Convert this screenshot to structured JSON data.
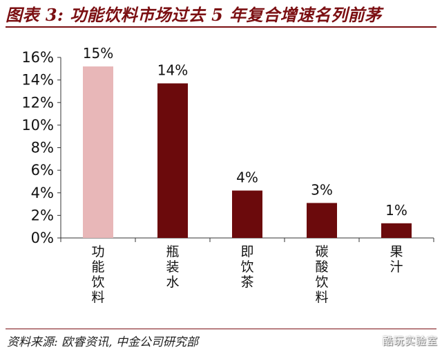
{
  "header": {
    "title": "图表 3: 功能饮料市场过去 5 年复合增速名列前茅"
  },
  "footer": {
    "source": "资料来源: 欧睿资讯, 中金公司研究部",
    "watermark": "酷玩实验室"
  },
  "colors": {
    "accent": "#7b0f12",
    "bar_default": "#6b0a0c",
    "bar_highlight": "#e8b7b8"
  },
  "chart_data": {
    "type": "bar",
    "title": "",
    "xlabel": "",
    "ylabel": "",
    "categories": [
      "功能饮料",
      "瓶装水",
      "即饮茶",
      "碳酸饮料",
      "果汁"
    ],
    "values": [
      15.2,
      13.7,
      4.2,
      3.1,
      1.3
    ],
    "data_labels": [
      "15%",
      "14%",
      "4%",
      "3%",
      "1%"
    ],
    "highlight_index": 0,
    "ylim": [
      0,
      16
    ],
    "yticks": [
      0,
      2,
      4,
      6,
      8,
      10,
      12,
      14,
      16
    ],
    "ytick_labels": [
      "0%",
      "2%",
      "4%",
      "6%",
      "8%",
      "10%",
      "12%",
      "14%",
      "16%"
    ],
    "grid": false,
    "legend": "none"
  }
}
